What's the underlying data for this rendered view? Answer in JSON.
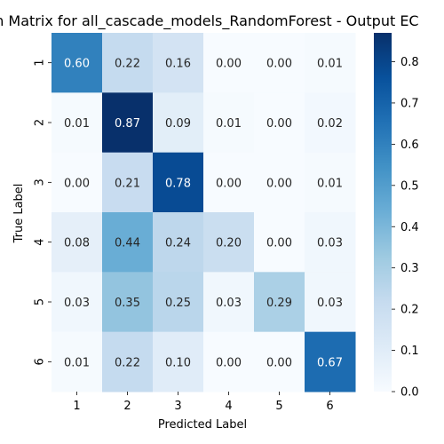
{
  "chart_data": {
    "type": "heatmap",
    "title": "on Matrix for all_cascade_models_RandomForest - Output EC",
    "xlabel": "Predicted Label",
    "ylabel": "True Label",
    "x_categories": [
      "1",
      "2",
      "3",
      "4",
      "5",
      "6"
    ],
    "y_categories": [
      "1",
      "2",
      "3",
      "4",
      "5",
      "6"
    ],
    "values": [
      [
        0.6,
        0.22,
        0.16,
        0.0,
        0.0,
        0.01
      ],
      [
        0.01,
        0.87,
        0.09,
        0.01,
        0.0,
        0.02
      ],
      [
        0.0,
        0.21,
        0.78,
        0.0,
        0.0,
        0.01
      ],
      [
        0.08,
        0.44,
        0.24,
        0.2,
        0.0,
        0.03
      ],
      [
        0.03,
        0.35,
        0.25,
        0.03,
        0.29,
        0.03
      ],
      [
        0.01,
        0.22,
        0.1,
        0.0,
        0.0,
        0.67
      ]
    ],
    "value_labels": [
      [
        "0.60",
        "0.22",
        "0.16",
        "0.00",
        "0.00",
        "0.01"
      ],
      [
        "0.01",
        "0.87",
        "0.09",
        "0.01",
        "0.00",
        "0.02"
      ],
      [
        "0.00",
        "0.21",
        "0.78",
        "0.00",
        "0.00",
        "0.01"
      ],
      [
        "0.08",
        "0.44",
        "0.24",
        "0.20",
        "0.00",
        "0.03"
      ],
      [
        "0.03",
        "0.35",
        "0.25",
        "0.03",
        "0.29",
        "0.03"
      ],
      [
        "0.01",
        "0.22",
        "0.10",
        "0.00",
        "0.00",
        "0.67"
      ]
    ],
    "colormap": "Blues",
    "color_range": [
      0.0,
      0.87
    ],
    "colorbar_ticks": [
      "0.0",
      "0.1",
      "0.2",
      "0.3",
      "0.4",
      "0.5",
      "0.6",
      "0.7",
      "0.8"
    ],
    "grid": false
  }
}
